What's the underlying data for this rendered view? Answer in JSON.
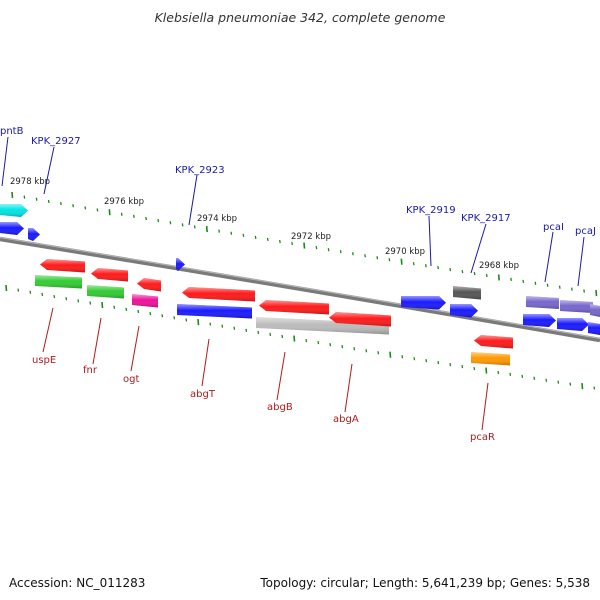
{
  "title": "Klebsiella pneumoniae 342, complete genome",
  "accession": "Accession: NC_011283",
  "summary": "Topology: circular; Length: 5,641,239 bp; Genes: 5,538",
  "scale_labels": [
    "2978 kbp",
    "2976 kbp",
    "2974 kbp",
    "2972 kbp",
    "2970 kbp",
    "2968 kbp"
  ],
  "labels_top": [
    "pntB",
    "KPK_2927",
    "KPK_2923",
    "KPK_2919",
    "KPK_2917",
    "pcaI",
    "pcaJ"
  ],
  "labels_bottom": [
    "uspE",
    "fnr",
    "ogt",
    "abgT",
    "abgB",
    "abgA",
    "pcaR"
  ],
  "colors": {
    "red": "#ff1a1a",
    "blue": "#1a1aff",
    "green": "#33cc33",
    "cyan": "#00e5e5",
    "magenta": "#ee1199",
    "gray": "#bbbbbb",
    "darkgray": "#555555",
    "orange": "#ff9900",
    "purple": "#7766cc",
    "backbone": "#808080",
    "tick": "#1a8a1a"
  }
}
